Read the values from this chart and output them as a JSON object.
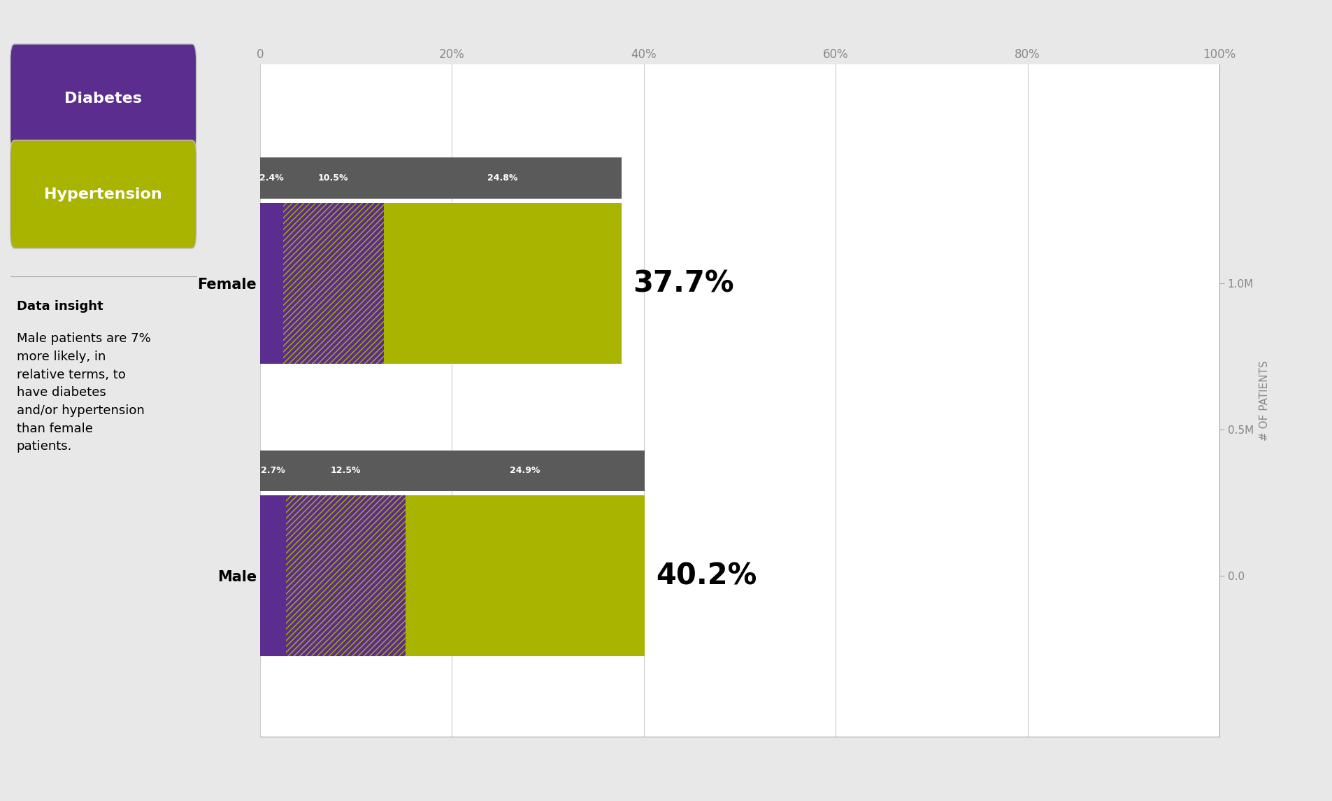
{
  "categories": [
    "Female",
    "Male"
  ],
  "segments": {
    "diabetes_only": [
      2.4,
      2.7
    ],
    "both": [
      10.5,
      12.5
    ],
    "hypertension_only": [
      24.8,
      24.9
    ]
  },
  "total_labels": [
    "37.7%",
    "40.2%"
  ],
  "color_diabetes": "#5b2d8e",
  "color_hypertension": "#a8b400",
  "bg_color": "#e8e8e8",
  "panel_bg": "#d8d8d8",
  "xlabel_ticks": [
    0,
    20,
    40,
    60,
    80,
    100
  ],
  "xlabel_labels": [
    "0",
    "20%",
    "40%",
    "60%",
    "80%",
    "100%"
  ],
  "right_axis_label": "# OF PATIENTS",
  "female_label_percents": [
    "2.4%",
    "10.5%",
    "24.8%"
  ],
  "male_label_percents": [
    "2.7%",
    "12.5%",
    "24.9%"
  ],
  "label_box_color": "#5a5a5a",
  "insight_title": "Data insight",
  "insight_text": "Male patients are 7%\nmore likely, in\nrelative terms, to\nhave diabetes\nand/or hypertension\nthan female\npatients.",
  "diabetes_button_color": "#5b2d8e",
  "hypertension_button_color": "#a8b400",
  "bar_height": 0.55
}
